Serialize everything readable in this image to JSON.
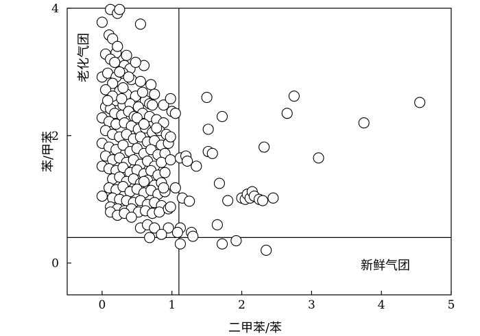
{
  "chart_data": {
    "type": "scatter",
    "xlabel": "二甲苯/苯",
    "ylabel": "苯/甲苯",
    "xlim": [
      -0.5,
      5
    ],
    "ylim": [
      -0.5,
      4
    ],
    "xticks": [
      0,
      1,
      2,
      3,
      4,
      5
    ],
    "yticks": [
      0,
      2,
      4
    ],
    "xtick_labels": [
      "0",
      "1",
      "2",
      "3",
      "4",
      "5"
    ],
    "ytick_labels": [
      "0",
      "2",
      "4"
    ],
    "grid": false,
    "marker": {
      "shape": "circle",
      "fill": "#ffffff",
      "stroke": "#000000"
    },
    "reference_lines": [
      {
        "orientation": "vertical",
        "x": 1.1
      },
      {
        "orientation": "horizontal",
        "y": 0.4
      }
    ],
    "region_labels": [
      {
        "text": "老化气团",
        "position": "upper-left, rotated vertical"
      },
      {
        "text": "新鲜气团",
        "position": "lower-right"
      }
    ],
    "points": [
      [
        0.12,
        3.98
      ],
      [
        0.22,
        3.92
      ],
      [
        0.25,
        3.98
      ],
      [
        0.0,
        3.78
      ],
      [
        0.1,
        3.58
      ],
      [
        0.15,
        3.52
      ],
      [
        0.55,
        3.75
      ],
      [
        0.05,
        3.28
      ],
      [
        0.2,
        3.3
      ],
      [
        0.35,
        3.26
      ],
      [
        0.32,
        3.1
      ],
      [
        0.4,
        3.05
      ],
      [
        0.6,
        3.1
      ],
      [
        0.12,
        3.2
      ],
      [
        0.18,
        3.15
      ],
      [
        0.22,
        3.4
      ],
      [
        0.0,
        2.92
      ],
      [
        0.08,
        2.98
      ],
      [
        0.2,
        2.92
      ],
      [
        0.3,
        2.98
      ],
      [
        0.15,
        2.82
      ],
      [
        0.42,
        2.88
      ],
      [
        0.55,
        2.85
      ],
      [
        0.7,
        2.8
      ],
      [
        0.75,
        2.65
      ],
      [
        0.05,
        2.72
      ],
      [
        0.25,
        2.7
      ],
      [
        0.35,
        2.65
      ],
      [
        0.48,
        2.62
      ],
      [
        0.62,
        2.55
      ],
      [
        0.2,
        2.55
      ],
      [
        0.3,
        2.48
      ],
      [
        0.4,
        2.5
      ],
      [
        0.52,
        2.45
      ],
      [
        0.05,
        2.45
      ],
      [
        0.12,
        2.42
      ],
      [
        0.18,
        2.35
      ],
      [
        0.28,
        2.32
      ],
      [
        0.38,
        2.38
      ],
      [
        0.46,
        2.3
      ],
      [
        0.58,
        2.35
      ],
      [
        0.68,
        2.3
      ],
      [
        0.78,
        2.25
      ],
      [
        0.88,
        2.2
      ],
      [
        0.0,
        2.28
      ],
      [
        0.1,
        2.22
      ],
      [
        0.2,
        2.18
      ],
      [
        0.32,
        2.2
      ],
      [
        0.42,
        2.15
      ],
      [
        0.52,
        2.1
      ],
      [
        0.62,
        2.12
      ],
      [
        0.72,
        2.05
      ],
      [
        0.82,
        2.08
      ],
      [
        0.92,
        2.02
      ],
      [
        0.05,
        2.08
      ],
      [
        0.15,
        2.02
      ],
      [
        0.25,
        1.98
      ],
      [
        0.35,
        2.02
      ],
      [
        0.45,
        1.95
      ],
      [
        0.55,
        1.98
      ],
      [
        0.65,
        1.9
      ],
      [
        0.75,
        1.92
      ],
      [
        0.85,
        1.85
      ],
      [
        0.95,
        1.88
      ],
      [
        0.0,
        1.88
      ],
      [
        0.1,
        1.82
      ],
      [
        0.2,
        1.78
      ],
      [
        0.3,
        1.85
      ],
      [
        0.4,
        1.75
      ],
      [
        0.5,
        1.8
      ],
      [
        0.6,
        1.72
      ],
      [
        0.7,
        1.78
      ],
      [
        0.8,
        1.7
      ],
      [
        0.9,
        1.72
      ],
      [
        0.05,
        1.68
      ],
      [
        0.15,
        1.62
      ],
      [
        0.25,
        1.65
      ],
      [
        0.35,
        1.58
      ],
      [
        0.45,
        1.62
      ],
      [
        0.55,
        1.55
      ],
      [
        0.65,
        1.6
      ],
      [
        0.75,
        1.52
      ],
      [
        0.85,
        1.58
      ],
      [
        0.0,
        1.52
      ],
      [
        0.1,
        1.48
      ],
      [
        0.2,
        1.45
      ],
      [
        0.3,
        1.5
      ],
      [
        0.4,
        1.42
      ],
      [
        0.5,
        1.46
      ],
      [
        0.6,
        1.4
      ],
      [
        0.7,
        1.45
      ],
      [
        0.8,
        1.38
      ],
      [
        0.9,
        1.42
      ],
      [
        0.15,
        1.32
      ],
      [
        0.25,
        1.35
      ],
      [
        0.35,
        1.28
      ],
      [
        0.45,
        1.32
      ],
      [
        0.55,
        1.25
      ],
      [
        0.65,
        1.3
      ],
      [
        0.75,
        1.22
      ],
      [
        0.85,
        1.26
      ],
      [
        0.1,
        1.18
      ],
      [
        0.2,
        1.15
      ],
      [
        0.3,
        1.2
      ],
      [
        0.4,
        1.12
      ],
      [
        0.5,
        1.16
      ],
      [
        0.6,
        1.1
      ],
      [
        0.7,
        1.14
      ],
      [
        0.8,
        1.08
      ],
      [
        0.9,
        1.12
      ],
      [
        0.0,
        1.05
      ],
      [
        0.15,
        1.02
      ],
      [
        0.25,
        1.0
      ],
      [
        0.35,
        0.98
      ],
      [
        0.45,
        0.95
      ],
      [
        0.55,
        0.98
      ],
      [
        0.65,
        0.92
      ],
      [
        0.75,
        0.95
      ],
      [
        0.85,
        0.9
      ],
      [
        0.12,
        0.88
      ],
      [
        0.22,
        0.85
      ],
      [
        0.32,
        0.82
      ],
      [
        0.42,
        0.85
      ],
      [
        0.52,
        0.8
      ],
      [
        0.62,
        0.82
      ],
      [
        0.72,
        0.78
      ],
      [
        0.82,
        0.8
      ],
      [
        0.95,
        0.85
      ],
      [
        0.12,
        0.8
      ],
      [
        0.22,
        0.75
      ],
      [
        0.32,
        0.78
      ],
      [
        0.42,
        0.72
      ],
      [
        0.55,
        0.55
      ],
      [
        0.65,
        0.6
      ],
      [
        0.75,
        0.55
      ],
      [
        0.95,
        0.55
      ],
      [
        0.68,
        0.4
      ],
      [
        0.85,
        0.45
      ],
      [
        0.3,
        2.75
      ],
      [
        0.38,
        2.92
      ],
      [
        0.48,
        3.15
      ],
      [
        0.25,
        3.0
      ],
      [
        0.15,
        2.62
      ],
      [
        0.28,
        2.58
      ],
      [
        0.58,
        2.68
      ],
      [
        0.68,
        2.5
      ],
      [
        0.88,
        2.48
      ],
      [
        0.08,
        2.55
      ],
      [
        0.5,
        2.28
      ],
      [
        0.72,
        2.48
      ],
      [
        0.6,
        2.18
      ],
      [
        0.78,
        2.12
      ],
      [
        0.98,
        1.98
      ],
      [
        0.98,
        1.62
      ],
      [
        0.6,
        1.28
      ],
      [
        0.88,
        1.18
      ],
      [
        1.0,
        2.38
      ],
      [
        0.98,
        2.58
      ],
      [
        1.05,
        2.35
      ],
      [
        1.12,
        1.65
      ],
      [
        1.2,
        1.68
      ],
      [
        1.35,
        1.52
      ],
      [
        1.22,
        1.6
      ],
      [
        1.05,
        1.18
      ],
      [
        1.15,
        1.02
      ],
      [
        1.25,
        0.97
      ],
      [
        0.98,
        0.88
      ],
      [
        1.12,
        0.55
      ],
      [
        1.08,
        0.48
      ],
      [
        1.28,
        0.48
      ],
      [
        1.3,
        0.42
      ],
      [
        1.12,
        0.3
      ],
      [
        1.5,
        2.6
      ],
      [
        1.52,
        2.1
      ],
      [
        1.72,
        2.3
      ],
      [
        1.52,
        1.75
      ],
      [
        1.58,
        1.72
      ],
      [
        1.68,
        1.25
      ],
      [
        1.8,
        0.98
      ],
      [
        1.65,
        0.6
      ],
      [
        1.72,
        0.3
      ],
      [
        1.92,
        0.35
      ],
      [
        2.0,
        1.02
      ],
      [
        2.05,
        1.0
      ],
      [
        2.08,
        1.08
      ],
      [
        2.12,
        1.02
      ],
      [
        2.15,
        1.12
      ],
      [
        2.18,
        1.05
      ],
      [
        2.25,
        1.0
      ],
      [
        2.3,
        0.98
      ],
      [
        2.45,
        1.02
      ],
      [
        2.32,
        1.82
      ],
      [
        2.35,
        0.2
      ],
      [
        2.65,
        2.35
      ],
      [
        2.75,
        2.62
      ],
      [
        3.1,
        1.65
      ],
      [
        3.75,
        2.2
      ],
      [
        4.55,
        2.52
      ]
    ]
  }
}
